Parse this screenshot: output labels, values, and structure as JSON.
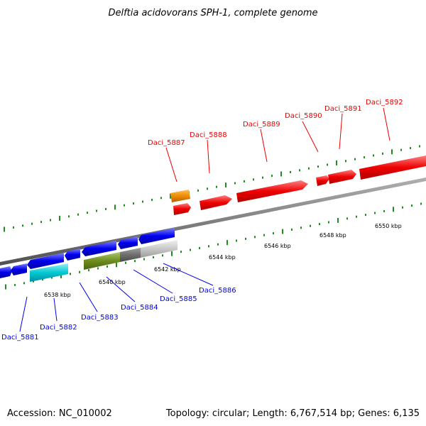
{
  "title": "Delftia acidovorans SPH-1, complete genome",
  "footer": {
    "accession": "Accession: NC_010002",
    "info": "Topology: circular; Length: 6,767,514 bp; Genes: 6,135"
  },
  "colors": {
    "forward": "#ee0000",
    "reverse": "#0000ee",
    "orange": "#f08c00",
    "cyan": "#00c8d2",
    "olive": "#6e8c1e",
    "gray": "#6e6e6e",
    "lightgray": "#c8c8c8",
    "tick": "#1e8c1e",
    "backbone": "#808080"
  },
  "kbp_labels": [
    "6538 kbp",
    "6540 kbp",
    "6542 kbp",
    "6544 kbp",
    "6546 kbp",
    "6548 kbp",
    "6550 kbp"
  ],
  "gene_labels_forward": [
    "Daci_5887",
    "Daci_5888",
    "Daci_5889",
    "Daci_5890",
    "Daci_5891",
    "Daci_5892"
  ],
  "gene_labels_reverse": [
    "Daci_5881",
    "Daci_5882",
    "Daci_5883",
    "Daci_5884",
    "Daci_5885",
    "Daci_5886"
  ]
}
